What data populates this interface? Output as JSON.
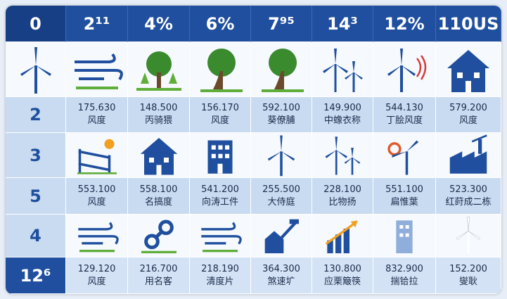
{
  "header": [
    "0",
    "2¹¹",
    "4%",
    "6%",
    "7⁹⁵",
    "14³",
    "12%",
    "110US"
  ],
  "icon_row_labels": [
    "3",
    "4"
  ],
  "data_rows": [
    {
      "label": "2",
      "cells": [
        {
          "number": "175.630",
          "name": "风度"
        },
        {
          "number": "148.500",
          "name": "丙骑猥"
        },
        {
          "number": "156.170",
          "name": "风度"
        },
        {
          "number": "592.100",
          "name": "葵僚脯"
        },
        {
          "number": "149.900",
          "name": "中蟓衣称"
        },
        {
          "number": "544.130",
          "name": "丁脍风度"
        },
        {
          "number": "579.200",
          "name": "风度"
        }
      ]
    },
    {
      "label": "5",
      "cells": [
        {
          "number": "553.100",
          "name": "风度"
        },
        {
          "number": "558.100",
          "name": "名搞度"
        },
        {
          "number": "541.200",
          "name": "向涛工件"
        },
        {
          "number": "255.500",
          "name": "大侍庭"
        },
        {
          "number": "228.100",
          "name": "比物扬"
        },
        {
          "number": "551.100",
          "name": "扁惟葉"
        },
        {
          "number": "523.300",
          "name": "红莳成二栋"
        }
      ]
    },
    {
      "label": "12⁶",
      "cells": [
        {
          "number": "129.120",
          "name": "风度"
        },
        {
          "number": "216.700",
          "name": "用名客"
        },
        {
          "number": "218.190",
          "name": "清度片"
        },
        {
          "number": "364.300",
          "name": "煞速圹"
        },
        {
          "number": "130.800",
          "name": "应栗簸筷"
        },
        {
          "number": "832.900",
          "name": "揣铪拉"
        },
        {
          "number": "152.200",
          "name": "燮耿"
        }
      ]
    }
  ]
}
